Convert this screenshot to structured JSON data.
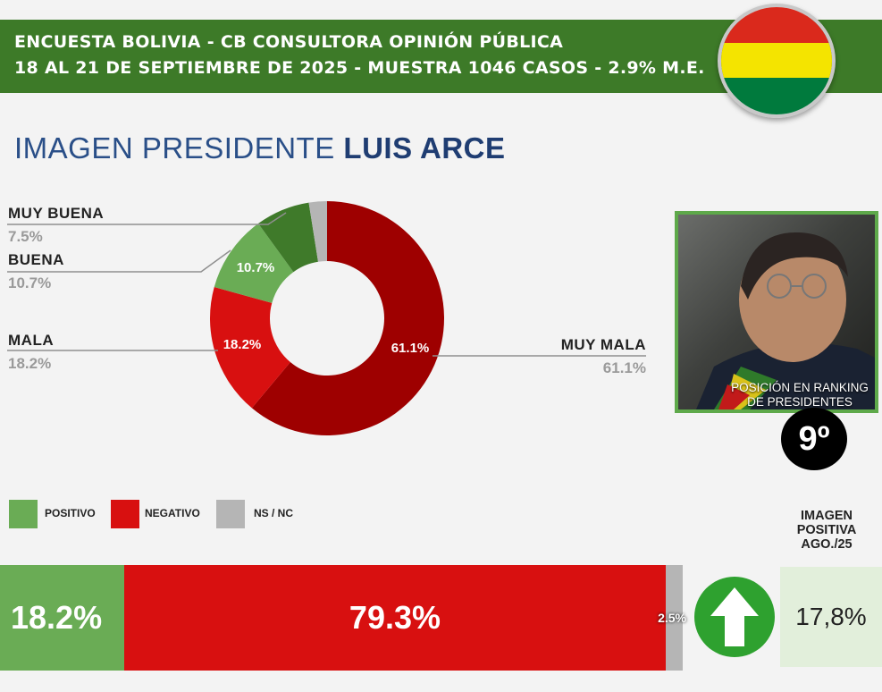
{
  "header": {
    "line1": "ENCUESTA BOLIVIA - CB CONSULTORA OPINIÓN PÚBLICA",
    "line2": "18 AL 21 DE SEPTIEMBRE DE 2025 - MUESTRA 1046 CASOS - 2.9% M.E."
  },
  "title": {
    "prefix": "IMAGEN PRESIDENTE",
    "name": "LUIS ARCE"
  },
  "colors": {
    "header_green": "#3d7a28",
    "muy_buena": "#3f7a2a",
    "buena": "#6aac55",
    "mala": "#d81010",
    "muy_mala": "#9e0000",
    "ns_nc": "#b5b5b5",
    "positivo": "#6aac55",
    "negativo": "#d81010",
    "flag_red": "#da291c",
    "flag_yellow": "#f4e400",
    "flag_green": "#007a3d"
  },
  "chart_data": [
    {
      "type": "pie",
      "categories": [
        "MUY BUENA",
        "BUENA",
        "MALA",
        "MUY MALA",
        "NS/NC"
      ],
      "values": [
        7.5,
        10.7,
        18.2,
        61.1,
        2.5
      ],
      "labels": [
        "7.5%",
        "10.7%",
        "18.2%",
        "61.1%",
        ""
      ]
    },
    {
      "type": "bar",
      "categories": [
        "POSITIVO",
        "NEGATIVO",
        "NS / NC"
      ],
      "values": [
        18.2,
        79.3,
        2.5
      ],
      "labels": [
        "18.2%",
        "79.3%",
        "2.5%"
      ]
    }
  ],
  "legend": [
    "POSITIVO",
    "NEGATIVO",
    "NS / NC"
  ],
  "photo": {
    "caption": "POSICIÓN EN RANKING DE PRESIDENTES",
    "rank": "9º"
  },
  "previous": {
    "title": "IMAGEN POSITIVA AGO./25",
    "value": "17,8%",
    "trend_icon": "up-arrow-icon"
  }
}
